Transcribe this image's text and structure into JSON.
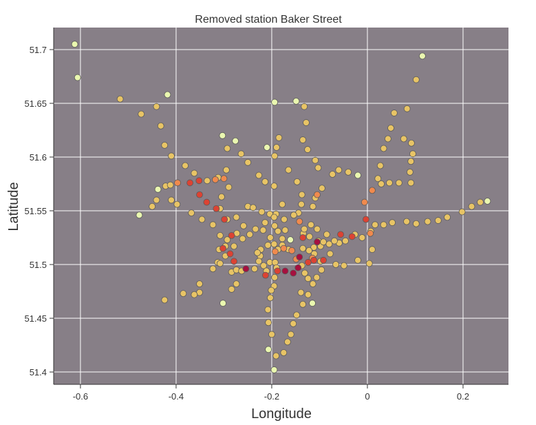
{
  "chart_data": {
    "type": "scatter",
    "title": "Removed station Baker Street",
    "x_label": "Longitude",
    "y_label": "Latitude",
    "xlim": [
      -0.656,
      0.295
    ],
    "ylim": [
      51.3885,
      51.7205
    ],
    "xticks": [
      -0.6,
      -0.4,
      -0.2,
      0,
      0.2
    ],
    "yticks": [
      51.4,
      51.45,
      51.5,
      51.55,
      51.6,
      51.65,
      51.7
    ],
    "grid": true,
    "background": "#877f87",
    "series": [
      {
        "color": "#e8c466",
        "x": [
          -0.517,
          -0.473,
          -0.441,
          -0.432,
          -0.424,
          -0.41,
          -0.381,
          -0.398,
          -0.41,
          -0.422,
          -0.412,
          -0.441,
          -0.45,
          -0.368,
          -0.346,
          -0.323,
          -0.308,
          -0.293,
          -0.274,
          -0.25,
          -0.239,
          -0.221,
          -0.204,
          -0.191,
          -0.178,
          -0.174,
          -0.144,
          -0.138,
          -0.114,
          -0.109,
          -0.095,
          -0.137,
          -0.165,
          -0.147,
          -0.195,
          -0.214,
          -0.227,
          -0.25,
          -0.264,
          -0.293,
          -0.295,
          -0.312,
          -0.305,
          -0.335,
          -0.362,
          -0.29,
          -0.194,
          -0.19,
          -0.185,
          -0.135,
          -0.125,
          -0.109,
          -0.103,
          -0.128,
          -0.132,
          -0.073,
          -0.06,
          -0.04,
          0.027,
          0.022,
          0.029,
          0.046,
          0.066,
          0.091,
          0.089,
          0.091,
          0.095,
          0.092,
          0.076,
          0.049,
          0.034,
          0.043,
          0.056,
          0.083,
          0.102,
          0.007,
          0.016,
          0.034,
          0.052,
          0.082,
          0.102,
          0.126,
          0.148,
          0.167,
          0.198,
          0.218,
          0.236,
          -0.011,
          -0.026,
          -0.046,
          -0.059,
          -0.08,
          -0.098,
          -0.112,
          -0.122,
          -0.135,
          -0.165,
          -0.178,
          -0.195,
          -0.208,
          -0.223,
          -0.224,
          -0.217,
          -0.211,
          -0.204,
          -0.193,
          -0.187,
          -0.178,
          -0.187,
          -0.194,
          -0.172,
          -0.134,
          -0.121,
          -0.103,
          -0.092,
          -0.085,
          -0.105,
          -0.118,
          -0.132,
          -0.154,
          -0.195,
          -0.214,
          -0.218,
          -0.203,
          -0.246,
          -0.259,
          -0.273,
          -0.261,
          -0.279,
          -0.293,
          -0.297,
          -0.308,
          -0.31,
          -0.297,
          -0.313,
          -0.323,
          -0.308,
          -0.284,
          -0.274,
          -0.263,
          -0.236,
          -0.227,
          -0.274,
          -0.284,
          -0.351,
          -0.351,
          -0.362,
          -0.385,
          -0.424,
          -0.194,
          -0.195,
          -0.201,
          -0.19,
          -0.137,
          -0.131,
          -0.124,
          -0.114,
          -0.106,
          -0.096,
          -0.078,
          -0.066,
          -0.049,
          -0.02,
          0.004,
          0.01,
          -0.139,
          -0.124,
          -0.135,
          -0.148,
          -0.155,
          -0.16,
          -0.167,
          -0.175,
          -0.191,
          -0.203,
          -0.208,
          -0.207,
          -0.2,
          -0.23,
          -0.111,
          -0.098,
          -0.069,
          -0.234
        ],
        "y": [
          51.654,
          51.64,
          51.647,
          51.629,
          51.611,
          51.601,
          51.592,
          51.556,
          51.56,
          51.573,
          51.574,
          51.56,
          51.554,
          51.548,
          51.542,
          51.537,
          51.552,
          51.542,
          51.544,
          51.554,
          51.553,
          51.549,
          51.547,
          51.547,
          51.556,
          51.542,
          51.548,
          51.556,
          51.554,
          51.562,
          51.571,
          51.565,
          51.588,
          51.577,
          51.573,
          51.577,
          51.583,
          51.595,
          51.603,
          51.608,
          51.588,
          51.581,
          51.563,
          51.578,
          51.585,
          51.572,
          51.601,
          51.609,
          51.618,
          51.616,
          51.607,
          51.597,
          51.59,
          51.632,
          51.647,
          51.584,
          51.588,
          51.586,
          51.592,
          51.58,
          51.575,
          51.576,
          51.576,
          51.576,
          51.586,
          51.596,
          51.603,
          51.613,
          51.617,
          51.627,
          51.608,
          51.617,
          51.641,
          51.645,
          51.672,
          51.531,
          51.537,
          51.537,
          51.539,
          51.54,
          51.538,
          51.54,
          51.541,
          51.544,
          51.549,
          51.554,
          51.558,
          51.525,
          51.528,
          51.522,
          51.52,
          51.519,
          51.517,
          51.516,
          51.513,
          51.515,
          51.514,
          51.518,
          51.519,
          51.518,
          51.514,
          51.508,
          51.499,
          51.494,
          51.502,
          51.502,
          51.514,
          51.524,
          51.531,
          51.536,
          51.532,
          51.529,
          51.526,
          51.522,
          51.521,
          51.528,
          51.533,
          51.537,
          51.533,
          51.546,
          51.544,
          51.539,
          51.532,
          51.525,
          51.528,
          51.536,
          51.529,
          51.524,
          51.517,
          51.523,
          51.517,
          51.527,
          51.514,
          51.508,
          51.502,
          51.496,
          51.501,
          51.493,
          51.495,
          51.494,
          51.496,
          51.503,
          51.482,
          51.477,
          51.482,
          51.474,
          51.472,
          51.473,
          51.467,
          51.488,
          51.48,
          51.476,
          51.497,
          51.499,
          51.492,
          51.487,
          51.482,
          51.488,
          51.495,
          51.51,
          51.5,
          51.499,
          51.504,
          51.501,
          51.514,
          51.474,
          51.472,
          51.463,
          51.453,
          51.445,
          51.435,
          51.428,
          51.418,
          51.415,
          51.469,
          51.458,
          51.446,
          51.435,
          51.511,
          51.51,
          51.503,
          51.522,
          51.533
        ]
      },
      {
        "color": "#eaf7b0",
        "x": [
          -0.612,
          -0.606,
          -0.418,
          -0.194,
          -0.149,
          0.115,
          -0.303,
          -0.276,
          -0.21,
          -0.438,
          -0.477,
          -0.02,
          -0.161,
          -0.302,
          -0.115,
          -0.207,
          -0.195,
          0.251
        ],
        "y": [
          51.705,
          51.674,
          51.658,
          51.651,
          51.652,
          51.694,
          51.62,
          51.615,
          51.609,
          51.57,
          51.546,
          51.583,
          51.523,
          51.464,
          51.464,
          51.421,
          51.402,
          51.559
        ]
      },
      {
        "color": "#f08a4e",
        "x": [
          -0.397,
          -0.318,
          -0.3,
          -0.105,
          -0.006,
          0.01,
          0.006,
          -0.142,
          -0.175,
          -0.158,
          -0.115,
          -0.193,
          -0.149
        ],
        "y": [
          51.576,
          51.579,
          51.58,
          51.565,
          51.558,
          51.569,
          51.529,
          51.54,
          51.515,
          51.513,
          51.506,
          51.512,
          51.505
        ]
      },
      {
        "color": "#dc4333",
        "x": [
          -0.371,
          -0.352,
          -0.336,
          -0.351,
          -0.316,
          -0.299,
          -0.284,
          -0.302,
          -0.287,
          -0.279,
          -0.213,
          -0.188,
          -0.135,
          -0.124,
          -0.112,
          -0.056,
          -0.032,
          -0.003,
          -0.092
        ],
        "y": [
          51.576,
          51.578,
          51.558,
          51.565,
          51.552,
          51.542,
          51.527,
          51.515,
          51.51,
          51.503,
          51.49,
          51.494,
          51.525,
          51.502,
          51.504,
          51.528,
          51.526,
          51.542,
          51.504
        ]
      },
      {
        "color": "#a6103f",
        "x": [
          -0.142,
          -0.254,
          -0.172,
          -0.155,
          -0.145,
          -0.105
        ],
        "y": [
          51.507,
          51.496,
          51.494,
          51.492,
          51.497,
          51.521
        ]
      }
    ]
  }
}
